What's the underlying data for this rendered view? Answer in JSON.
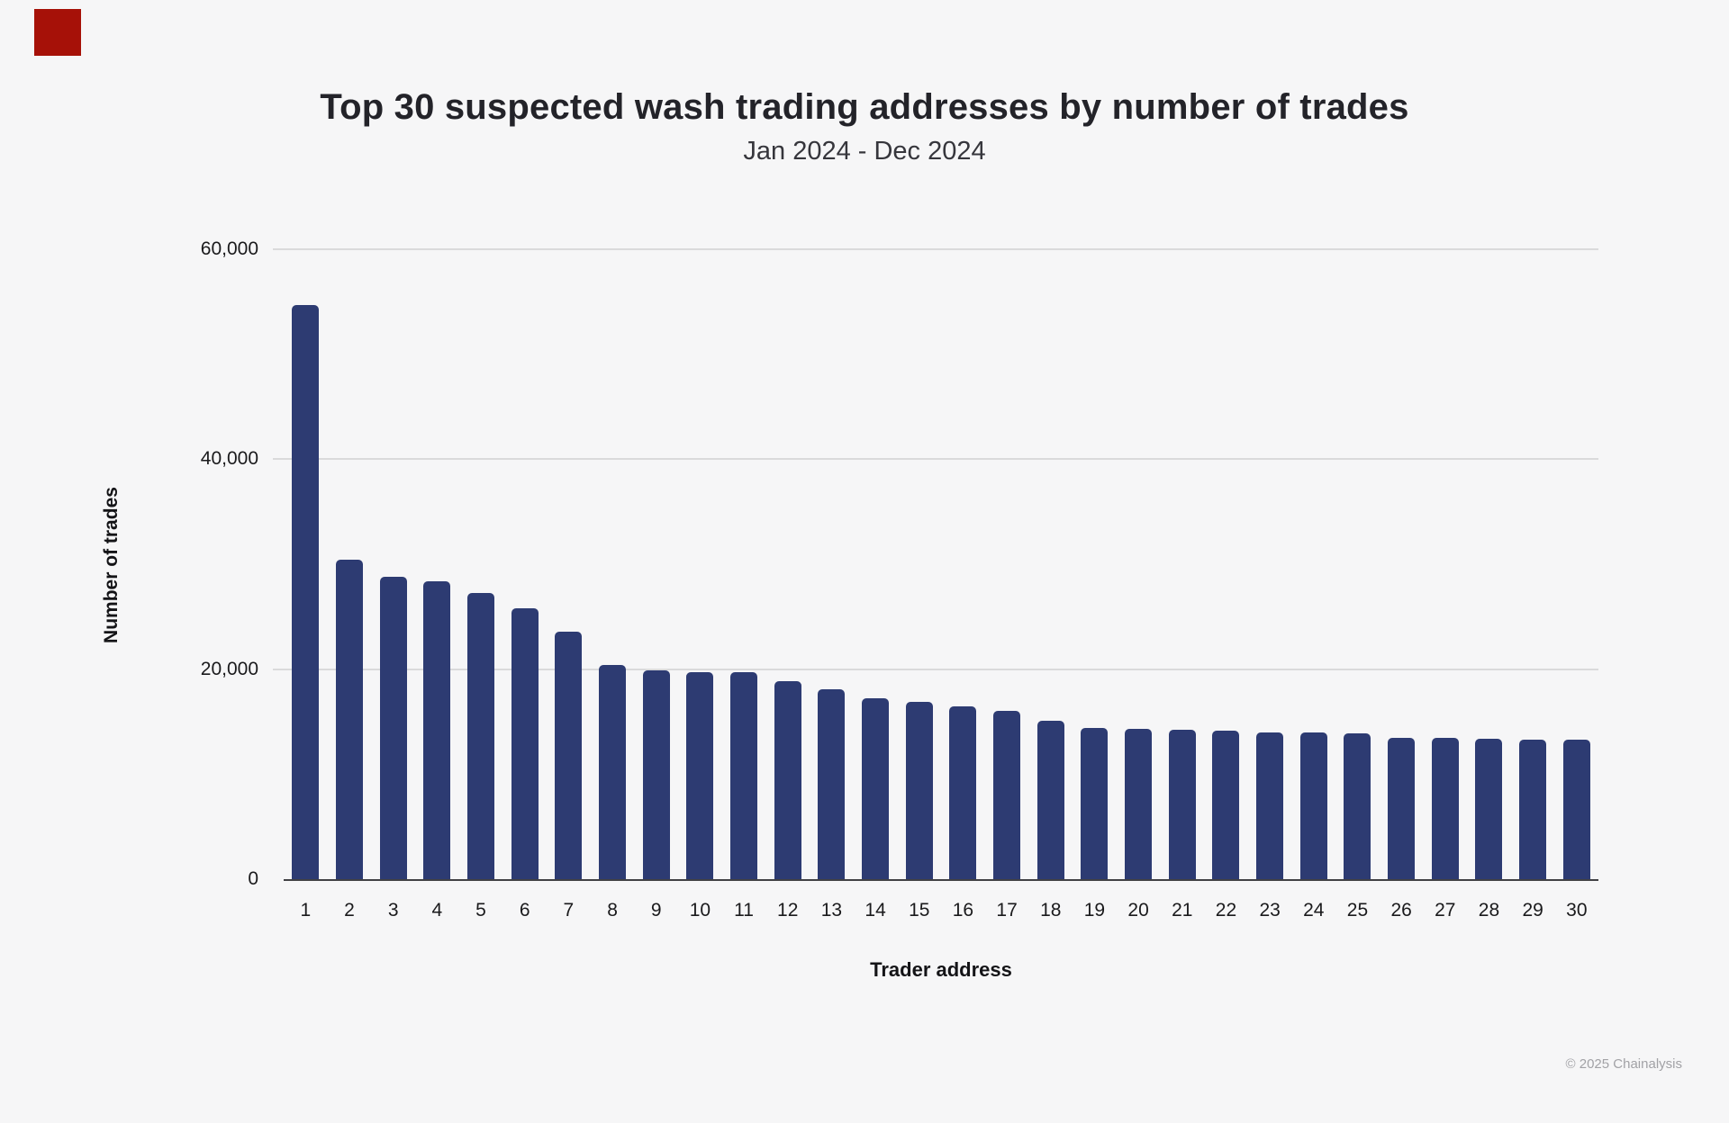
{
  "page": {
    "background": "#f6f6f7"
  },
  "marker": {
    "color": "#a61108"
  },
  "header": {
    "title": "Top 30 suspected wash trading addresses by number of trades",
    "subtitle": "Jan 2024 - Dec 2024"
  },
  "footer": {
    "copyright": "© 2025 Chainalysis"
  },
  "colors": {
    "bar": "#2d3b72",
    "gridline": "#dadadb",
    "axis_line": "#414144",
    "tick_text": "#1a1a1c",
    "footer_text": "#a2a2a6"
  },
  "chart_data": {
    "type": "bar",
    "title": "Top 30 suspected wash trading addresses by number of trades",
    "subtitle": "Jan 2024 - Dec 2024",
    "xlabel": "Trader address",
    "ylabel": "Number of trades",
    "ylim": [
      0,
      60000
    ],
    "grid": true,
    "legend": "none",
    "bar_color": "#2d3b72",
    "categories": [
      "1",
      "2",
      "3",
      "4",
      "5",
      "6",
      "7",
      "8",
      "9",
      "10",
      "11",
      "12",
      "13",
      "14",
      "15",
      "16",
      "17",
      "18",
      "19",
      "20",
      "21",
      "22",
      "23",
      "24",
      "25",
      "26",
      "27",
      "28",
      "29",
      "30"
    ],
    "values": [
      54700,
      30400,
      28800,
      28400,
      27300,
      25800,
      23600,
      20400,
      19900,
      19700,
      19700,
      18900,
      18100,
      17200,
      16900,
      16500,
      16000,
      15100,
      14400,
      14350,
      14200,
      14150,
      14000,
      13950,
      13900,
      13500,
      13450,
      13350,
      13300,
      13250
    ],
    "y_ticks": [
      {
        "label": "0",
        "value": 0
      },
      {
        "label": "20,000",
        "value": 20000
      },
      {
        "label": "40,000",
        "value": 40000
      },
      {
        "label": "60,000",
        "value": 60000
      }
    ]
  }
}
